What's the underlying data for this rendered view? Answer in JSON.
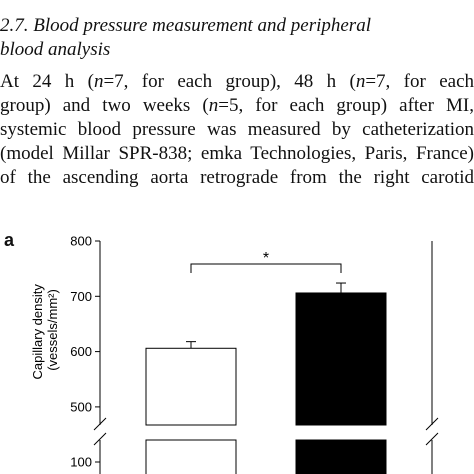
{
  "section": {
    "heading": "2.7. Blood pressure measurement and peripheral blood analysis",
    "heading_line1": "2.7. Blood pressure measurement and peripheral",
    "heading_line2": "blood analysis"
  },
  "paragraph": {
    "l1a": "At 24 h (",
    "l1n1": "n",
    "l1b": "=7, for each group), 48 h (",
    "l1n2": "n",
    "l1c": "=7, for each",
    "l2a": "group) and two weeks (",
    "l2n": "n",
    "l2b": "=5, for each group) after MI,",
    "l3": "systemic blood pressure was measured by catheterization",
    "l4": "(model Millar SPR-838; emka Technologies, Paris, France)",
    "l5": "of the ascending aorta retrograde from the right carotid"
  },
  "figure": {
    "panel_label": "a",
    "significance": "*",
    "colors": {
      "axis": "#000000",
      "bar_first": "#ffffff",
      "bar_second": "#000000"
    }
  },
  "chart_data": {
    "type": "bar",
    "categories": [
      "",
      ""
    ],
    "values": [
      606,
      706
    ],
    "errors": [
      12,
      18
    ],
    "ylabel_line1": "Capillary density",
    "ylabel_line2": "(vessels/mm²)",
    "yticks_upper": [
      500,
      600,
      700,
      800
    ],
    "ytick_lower_visible": 100,
    "ylim_upper": [
      460,
      800
    ],
    "axis_break": true,
    "grid": false,
    "legend": "none",
    "annotation": "*"
  }
}
